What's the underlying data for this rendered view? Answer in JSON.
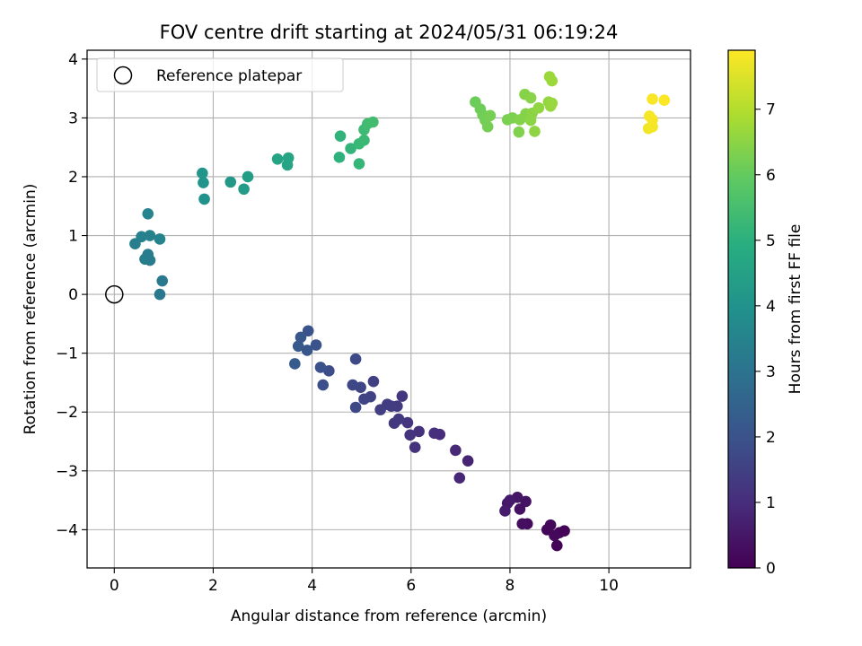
{
  "chart_data": {
    "type": "scatter",
    "title": "FOV centre drift starting at 2024/05/31 06:19:24",
    "xlabel": "Angular distance from reference (arcmin)",
    "ylabel": "Rotation from reference (arcmin)",
    "colorbar_label": "Hours from first FF file",
    "colormap": "viridis",
    "xlim": [
      -0.55,
      11.65
    ],
    "ylim": [
      -4.65,
      4.15
    ],
    "clim": [
      0,
      7.9
    ],
    "xticks": [
      0,
      2,
      4,
      6,
      8,
      10
    ],
    "yticks": [
      -4,
      -3,
      -2,
      -1,
      0,
      1,
      2,
      3,
      4
    ],
    "cticks": [
      0,
      1,
      2,
      3,
      4,
      5,
      6,
      7
    ],
    "grid": true,
    "legend": {
      "location": "upper-left",
      "entries": [
        "Reference platepar"
      ]
    },
    "reference_point": {
      "x": 0,
      "y": 0
    },
    "points": [
      {
        "x": 8.95,
        "y": -4.27,
        "t": 0.05
      },
      {
        "x": 9.1,
        "y": -4.02,
        "t": 0.08
      },
      {
        "x": 9.0,
        "y": -4.05,
        "t": 0.1
      },
      {
        "x": 8.75,
        "y": -4.0,
        "t": 0.12
      },
      {
        "x": 8.82,
        "y": -3.92,
        "t": 0.15
      },
      {
        "x": 8.9,
        "y": -4.1,
        "t": 0.18
      },
      {
        "x": 8.35,
        "y": -3.9,
        "t": 0.25
      },
      {
        "x": 8.25,
        "y": -3.9,
        "t": 0.3
      },
      {
        "x": 8.2,
        "y": -3.65,
        "t": 0.35
      },
      {
        "x": 8.32,
        "y": -3.52,
        "t": 0.4
      },
      {
        "x": 8.15,
        "y": -3.45,
        "t": 0.45
      },
      {
        "x": 7.95,
        "y": -3.55,
        "t": 0.5
      },
      {
        "x": 8.0,
        "y": -3.5,
        "t": 0.55
      },
      {
        "x": 7.9,
        "y": -3.68,
        "t": 0.6
      },
      {
        "x": 7.15,
        "y": -2.83,
        "t": 0.8
      },
      {
        "x": 6.98,
        "y": -3.12,
        "t": 0.85
      },
      {
        "x": 6.9,
        "y": -2.65,
        "t": 0.9
      },
      {
        "x": 6.58,
        "y": -2.38,
        "t": 1.0
      },
      {
        "x": 6.47,
        "y": -2.36,
        "t": 1.05
      },
      {
        "x": 6.16,
        "y": -2.33,
        "t": 1.1
      },
      {
        "x": 6.08,
        "y": -2.6,
        "t": 1.12
      },
      {
        "x": 5.98,
        "y": -2.39,
        "t": 1.15
      },
      {
        "x": 5.93,
        "y": -2.18,
        "t": 1.2
      },
      {
        "x": 5.82,
        "y": -1.73,
        "t": 1.25
      },
      {
        "x": 5.75,
        "y": -2.12,
        "t": 1.3
      },
      {
        "x": 5.66,
        "y": -2.19,
        "t": 1.32
      },
      {
        "x": 5.72,
        "y": -1.9,
        "t": 1.35
      },
      {
        "x": 5.6,
        "y": -1.9,
        "t": 1.38
      },
      {
        "x": 5.52,
        "y": -1.87,
        "t": 1.4
      },
      {
        "x": 5.38,
        "y": -1.96,
        "t": 1.45
      },
      {
        "x": 5.24,
        "y": -1.48,
        "t": 1.5
      },
      {
        "x": 5.18,
        "y": -1.74,
        "t": 1.55
      },
      {
        "x": 5.05,
        "y": -1.78,
        "t": 1.6
      },
      {
        "x": 4.98,
        "y": -1.58,
        "t": 1.65
      },
      {
        "x": 4.88,
        "y": -1.92,
        "t": 1.7
      },
      {
        "x": 4.82,
        "y": -1.54,
        "t": 1.72
      },
      {
        "x": 4.88,
        "y": -1.1,
        "t": 1.75
      },
      {
        "x": 4.34,
        "y": -1.3,
        "t": 1.85
      },
      {
        "x": 4.22,
        "y": -1.54,
        "t": 1.9
      },
      {
        "x": 4.17,
        "y": -1.24,
        "t": 1.95
      },
      {
        "x": 4.08,
        "y": -0.86,
        "t": 2.0
      },
      {
        "x": 3.92,
        "y": -0.62,
        "t": 2.05
      },
      {
        "x": 3.9,
        "y": -0.95,
        "t": 2.1
      },
      {
        "x": 3.77,
        "y": -0.73,
        "t": 2.15
      },
      {
        "x": 3.72,
        "y": -0.88,
        "t": 2.2
      },
      {
        "x": 3.65,
        "y": -1.18,
        "t": 2.25
      },
      {
        "x": 0.92,
        "y": 0.0,
        "t": 3.15
      },
      {
        "x": 0.97,
        "y": 0.23,
        "t": 3.2
      },
      {
        "x": 0.72,
        "y": 0.58,
        "t": 3.25
      },
      {
        "x": 0.68,
        "y": 0.68,
        "t": 3.28
      },
      {
        "x": 0.62,
        "y": 0.6,
        "t": 3.3
      },
      {
        "x": 0.42,
        "y": 0.86,
        "t": 3.35
      },
      {
        "x": 0.55,
        "y": 0.98,
        "t": 3.4
      },
      {
        "x": 0.72,
        "y": 1.0,
        "t": 3.45
      },
      {
        "x": 0.92,
        "y": 0.94,
        "t": 3.5
      },
      {
        "x": 0.68,
        "y": 1.37,
        "t": 3.55
      },
      {
        "x": 1.82,
        "y": 1.62,
        "t": 4.0
      },
      {
        "x": 1.8,
        "y": 1.9,
        "t": 4.05
      },
      {
        "x": 1.78,
        "y": 2.06,
        "t": 4.1
      },
      {
        "x": 2.35,
        "y": 1.91,
        "t": 4.2
      },
      {
        "x": 2.62,
        "y": 1.79,
        "t": 4.3
      },
      {
        "x": 2.7,
        "y": 2.0,
        "t": 4.35
      },
      {
        "x": 3.3,
        "y": 2.3,
        "t": 4.55
      },
      {
        "x": 3.5,
        "y": 2.2,
        "t": 4.6
      },
      {
        "x": 3.52,
        "y": 2.32,
        "t": 4.62
      },
      {
        "x": 4.55,
        "y": 2.33,
        "t": 5.05
      },
      {
        "x": 4.57,
        "y": 2.69,
        "t": 5.1
      },
      {
        "x": 4.78,
        "y": 2.48,
        "t": 5.15
      },
      {
        "x": 4.95,
        "y": 2.22,
        "t": 5.2
      },
      {
        "x": 4.95,
        "y": 2.56,
        "t": 5.25
      },
      {
        "x": 5.05,
        "y": 2.62,
        "t": 5.3
      },
      {
        "x": 5.05,
        "y": 2.8,
        "t": 5.35
      },
      {
        "x": 5.12,
        "y": 2.9,
        "t": 5.4
      },
      {
        "x": 5.23,
        "y": 2.93,
        "t": 5.45
      },
      {
        "x": 7.3,
        "y": 3.27,
        "t": 6.1
      },
      {
        "x": 7.4,
        "y": 3.15,
        "t": 6.12
      },
      {
        "x": 7.45,
        "y": 3.05,
        "t": 6.15
      },
      {
        "x": 7.5,
        "y": 2.96,
        "t": 6.18
      },
      {
        "x": 7.55,
        "y": 2.85,
        "t": 6.2
      },
      {
        "x": 7.6,
        "y": 3.04,
        "t": 6.22
      },
      {
        "x": 7.95,
        "y": 2.97,
        "t": 6.28
      },
      {
        "x": 8.05,
        "y": 3.0,
        "t": 6.3
      },
      {
        "x": 8.18,
        "y": 2.76,
        "t": 6.35
      },
      {
        "x": 8.2,
        "y": 2.97,
        "t": 6.38
      },
      {
        "x": 8.32,
        "y": 3.07,
        "t": 6.4
      },
      {
        "x": 8.3,
        "y": 3.4,
        "t": 6.42
      },
      {
        "x": 8.42,
        "y": 3.34,
        "t": 6.45
      },
      {
        "x": 8.42,
        "y": 2.96,
        "t": 6.48
      },
      {
        "x": 8.45,
        "y": 3.08,
        "t": 6.5
      },
      {
        "x": 8.5,
        "y": 2.77,
        "t": 6.52
      },
      {
        "x": 8.58,
        "y": 3.17,
        "t": 6.55
      },
      {
        "x": 8.78,
        "y": 3.27,
        "t": 6.6
      },
      {
        "x": 8.82,
        "y": 3.2,
        "t": 6.62
      },
      {
        "x": 8.85,
        "y": 3.25,
        "t": 6.65
      },
      {
        "x": 8.8,
        "y": 3.7,
        "t": 6.68
      },
      {
        "x": 8.85,
        "y": 3.63,
        "t": 6.7
      },
      {
        "x": 10.8,
        "y": 2.82,
        "t": 7.75
      },
      {
        "x": 10.88,
        "y": 2.85,
        "t": 7.78
      },
      {
        "x": 10.82,
        "y": 3.03,
        "t": 7.8
      },
      {
        "x": 10.88,
        "y": 2.97,
        "t": 7.82
      },
      {
        "x": 10.88,
        "y": 3.32,
        "t": 7.85
      },
      {
        "x": 11.12,
        "y": 3.3,
        "t": 7.88
      }
    ]
  }
}
